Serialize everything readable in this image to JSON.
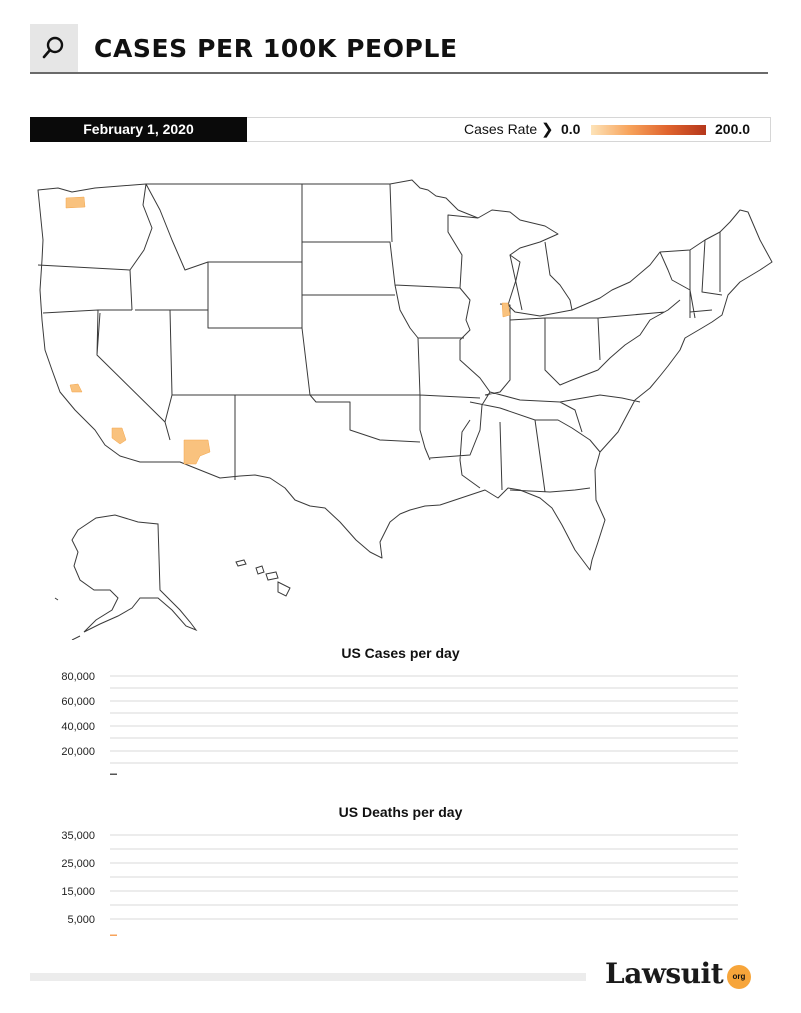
{
  "header": {
    "title": "CASES PER 100K PEOPLE",
    "icon": "search-icon"
  },
  "legend": {
    "date": "February 1, 2020",
    "rate_label": "Cases Rate",
    "rate_min": "0.0",
    "rate_max": "200.0",
    "gradient_colors": [
      "#fde3b8",
      "#f7a35b",
      "#e0642e",
      "#b5371b"
    ]
  },
  "map": {
    "type": "choropleth",
    "highlight_color": "#f9c27e",
    "highlighted_regions": [
      "Washington",
      "California",
      "Arizona",
      "Illinois"
    ]
  },
  "chart_data": [
    {
      "type": "bar",
      "title": "US Cases per day",
      "yticks": [
        "80,000",
        "60,000",
        "40,000",
        "20,000"
      ],
      "ylim": [
        0,
        85000
      ],
      "values": [
        1
      ],
      "bar_color": "#555555",
      "grid": true
    },
    {
      "type": "bar",
      "title": "US Deaths per day",
      "yticks": [
        "35,000",
        "25,000",
        "15,000",
        "5,000"
      ],
      "ylim": [
        0,
        37000
      ],
      "values": [
        0
      ],
      "bar_color": "#f7a35b",
      "grid": true
    }
  ],
  "footer": {
    "logo": "Lawsuit",
    "logo_suffix": "org"
  }
}
